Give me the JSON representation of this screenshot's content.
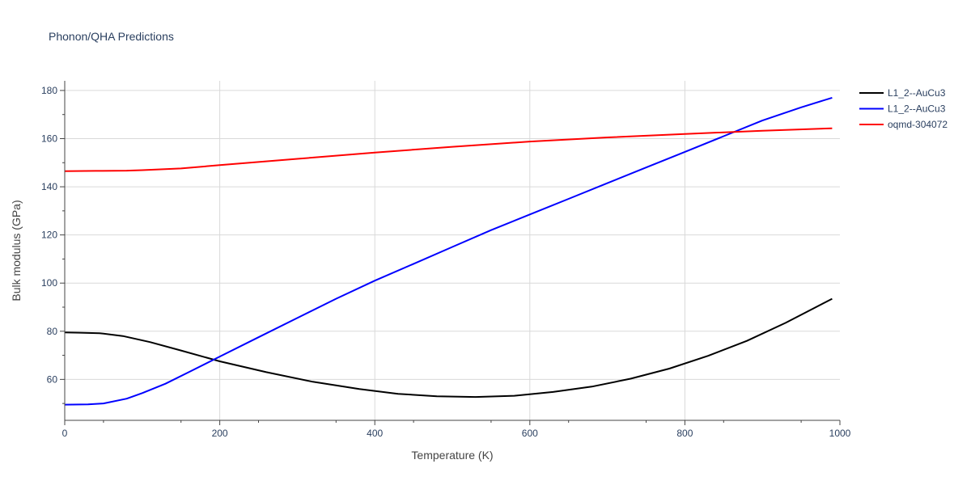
{
  "chart_data": {
    "type": "line",
    "title": "Phonon/QHA Predictions",
    "xlabel": "Temperature (K)",
    "ylabel": "Bulk modulus (GPa)",
    "xlim": [
      0,
      1000
    ],
    "ylim": [
      43,
      184
    ],
    "x_ticks": [
      0,
      200,
      400,
      600,
      800,
      1000
    ],
    "y_ticks": [
      60,
      80,
      100,
      120,
      140,
      160,
      180
    ],
    "grid": true,
    "legend_position": "top-right",
    "series": [
      {
        "name": "L1_2--AuCu3",
        "color": "#000000",
        "x": [
          0,
          20,
          45,
          75,
          110,
          150,
          200,
          260,
          320,
          380,
          430,
          480,
          530,
          580,
          630,
          680,
          730,
          780,
          830,
          880,
          930,
          990
        ],
        "y": [
          79.5,
          79.4,
          79.2,
          78,
          75.5,
          72,
          67.5,
          63,
          59,
          56,
          54,
          53,
          52.7,
          53.2,
          54.8,
          57,
          60.3,
          64.5,
          69.8,
          76,
          83.5,
          93.5
        ]
      },
      {
        "name": "L1_2--AuCu3",
        "color": "#0000ff",
        "x": [
          0,
          30,
          50,
          80,
          100,
          130,
          160,
          200,
          250,
          300,
          350,
          400,
          450,
          500,
          550,
          600,
          650,
          700,
          750,
          800,
          850,
          900,
          950,
          990
        ],
        "y": [
          49.5,
          49.6,
          50,
          52,
          54.3,
          58.2,
          63,
          69.5,
          77.5,
          85.5,
          93.5,
          101,
          108,
          115,
          122,
          128.5,
          135,
          141.5,
          148,
          154.5,
          161,
          167.5,
          173,
          177
        ]
      },
      {
        "name": "oqmd-304072",
        "color": "#ff0000",
        "x": [
          0,
          40,
          80,
          100,
          150,
          200,
          300,
          400,
          500,
          600,
          700,
          800,
          900,
          990
        ],
        "y": [
          146.5,
          146.6,
          146.7,
          146.9,
          147.6,
          149,
          151.6,
          154.2,
          156.6,
          158.8,
          160.5,
          161.9,
          163.3,
          164.3
        ]
      }
    ]
  }
}
